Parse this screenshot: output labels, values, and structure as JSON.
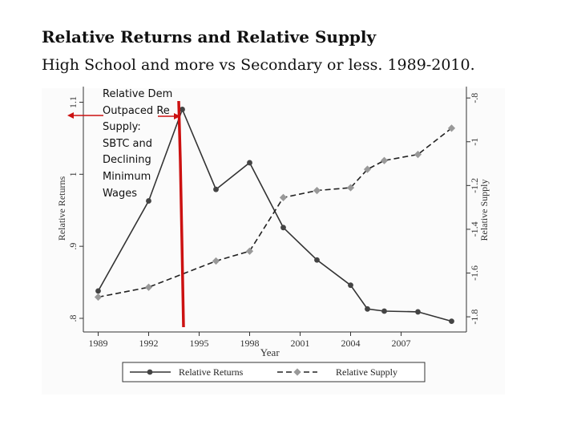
{
  "title": "Relative Returns and Relative Supply",
  "subtitle": "High School and more vs Secondary or less. 1989-2010.",
  "annotation": {
    "lines": [
      "Relative Dem",
      "Outpaced Re",
      "Supply:",
      "SBTC  and",
      "Declining",
      "Minimum",
      "Wages"
    ],
    "arrow_color": "#cc1111"
  },
  "chart_data": {
    "type": "line",
    "xlabel": "Year",
    "ylabel_left": "Relative Returns",
    "ylabel_right": "Relative Supply",
    "x_ticks": [
      1989,
      1992,
      1995,
      1998,
      2001,
      2004,
      2007
    ],
    "xlim": [
      1988.5,
      2010.5
    ],
    "y_left_ticks": [
      ".8",
      ".9",
      "1",
      "1.1"
    ],
    "y_left_tick_values": [
      0.8,
      0.9,
      1.0,
      1.1
    ],
    "y_left_lim": [
      0.79,
      1.115
    ],
    "y_right_ticks": [
      "-1.8",
      "-1.6",
      "-1.4",
      "-1.2",
      "-1",
      "-.8"
    ],
    "y_right_tick_values": [
      -1.8,
      -1.6,
      -1.4,
      -1.2,
      -1.0,
      -0.8
    ],
    "y_right_lim": [
      -1.84,
      -0.77
    ],
    "series": [
      {
        "name": "Relative Returns",
        "axis": "left",
        "style": "solid",
        "color": "#444444",
        "marker": "circle",
        "x": [
          1989,
          1992,
          1994,
          1996,
          1998,
          2000,
          2002,
          2004,
          2005,
          2006,
          2008,
          2010
        ],
        "y": [
          0.838,
          0.963,
          1.09,
          0.979,
          1.016,
          0.926,
          0.881,
          0.846,
          0.813,
          0.81,
          0.809,
          0.796
        ]
      },
      {
        "name": "Relative Supply",
        "axis": "right",
        "style": "dashed",
        "color": "#999999",
        "marker": "diamond",
        "x": [
          1989,
          1992,
          1996,
          1998,
          2000,
          2002,
          2004,
          2005,
          2006,
          2008,
          2010
        ],
        "y": [
          -1.71,
          -1.665,
          -1.545,
          -1.5,
          -1.255,
          -1.223,
          -1.21,
          -1.126,
          -1.086,
          -1.058,
          -0.938
        ]
      }
    ],
    "legend": {
      "position": "bottom",
      "entries": [
        "Relative Returns",
        "Relative Supply"
      ]
    }
  }
}
